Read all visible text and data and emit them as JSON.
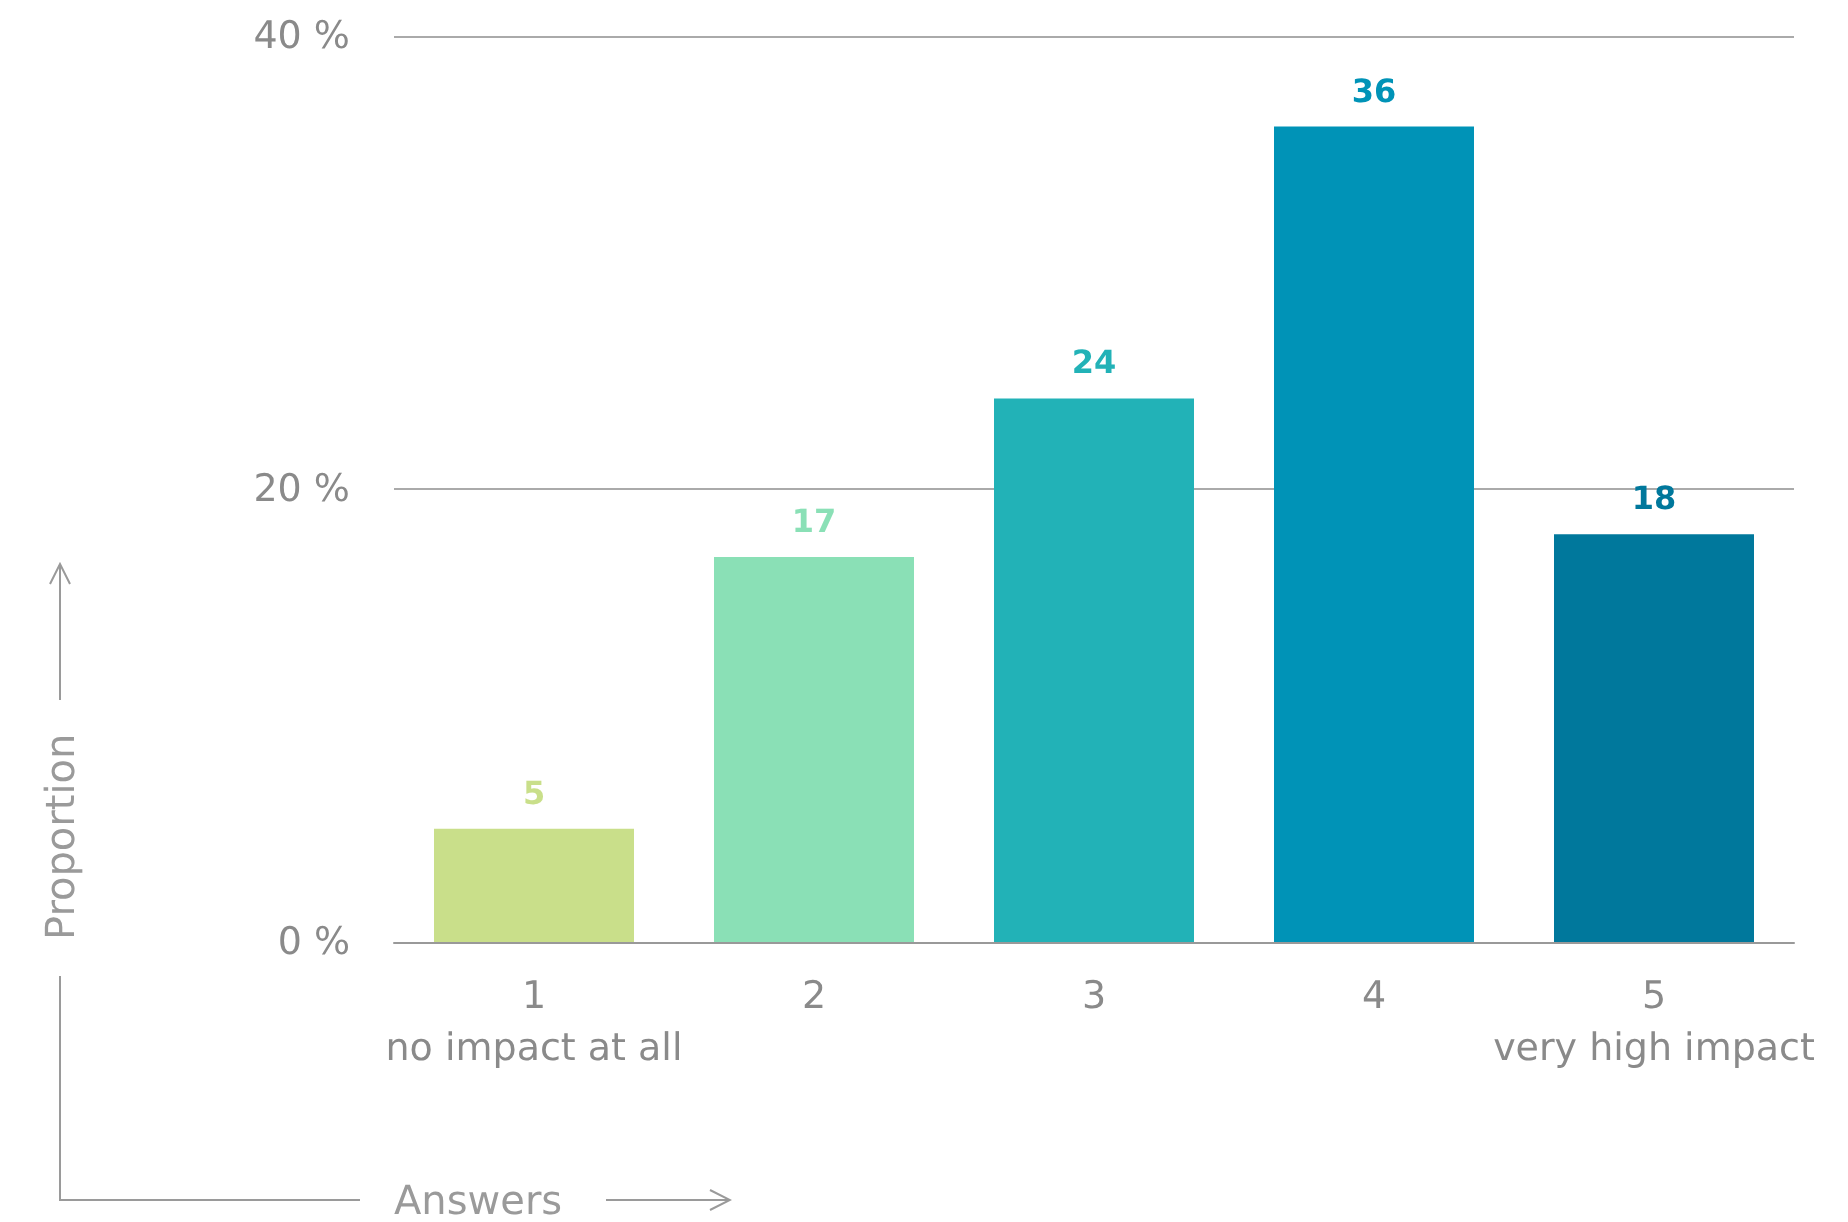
{
  "chart_data": {
    "type": "bar",
    "xlabel": "Answers",
    "ylabel": "Proportion",
    "categories": [
      "1\nno impact at all",
      "2",
      "3",
      "4",
      "5\nvery high impact"
    ],
    "values": [
      5,
      17,
      24,
      36,
      18
    ],
    "colors": [
      "#c9df8a",
      "#8ae0b6",
      "#22b2b7",
      "#0093b7",
      "#00789c"
    ],
    "ylim": [
      0,
      40
    ],
    "yticks": [
      {
        "value": 0,
        "label": "0 %"
      },
      {
        "value": 20,
        "label": "20 %"
      },
      {
        "value": 40,
        "label": "40 %"
      }
    ],
    "grid": "y",
    "data_labels": true
  }
}
